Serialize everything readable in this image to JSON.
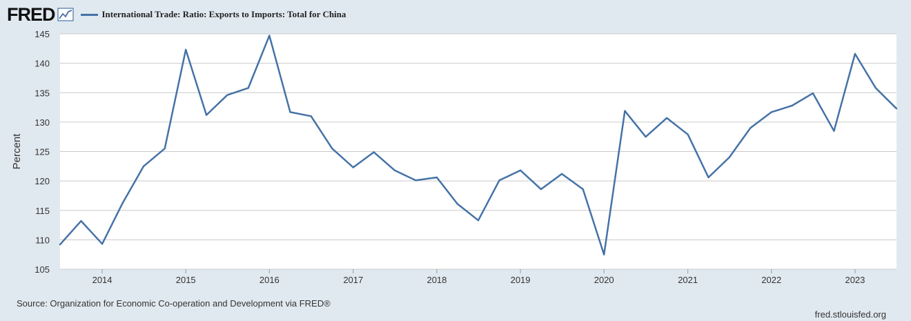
{
  "header": {
    "logo_text": "FRED",
    "series_label": "International Trade: Ratio: Exports to Imports: Total for China",
    "series_color": "#4572a7"
  },
  "footer": {
    "source": "Source: Organization for Economic Co-operation and Development via FRED®",
    "site": "fred.stlouisfed.org"
  },
  "chart_data": {
    "type": "line",
    "title": "",
    "xlabel": "",
    "ylabel": "Percent",
    "ylim": [
      105,
      145
    ],
    "yticks": [
      105,
      110,
      115,
      120,
      125,
      130,
      135,
      140,
      145
    ],
    "xlim": [
      "2013-07-01",
      "2023-07-01"
    ],
    "xticks": [
      "2014",
      "2015",
      "2016",
      "2017",
      "2018",
      "2019",
      "2020",
      "2021",
      "2022",
      "2023"
    ],
    "grid": true,
    "background": "#ffffff",
    "series": [
      {
        "name": "International Trade: Ratio: Exports to Imports: Total for China",
        "color": "#4572a7",
        "x": [
          "2013-07-01",
          "2013-10-01",
          "2014-01-01",
          "2014-04-01",
          "2014-07-01",
          "2014-10-01",
          "2015-01-01",
          "2015-04-01",
          "2015-07-01",
          "2015-10-01",
          "2016-01-01",
          "2016-04-01",
          "2016-07-01",
          "2016-10-01",
          "2017-01-01",
          "2017-04-01",
          "2017-07-01",
          "2017-10-01",
          "2018-01-01",
          "2018-04-01",
          "2018-07-01",
          "2018-10-01",
          "2019-01-01",
          "2019-04-01",
          "2019-07-01",
          "2019-10-01",
          "2020-01-01",
          "2020-04-01",
          "2020-07-01",
          "2020-10-01",
          "2021-01-01",
          "2021-04-01",
          "2021-07-01",
          "2021-10-01",
          "2022-01-01",
          "2022-04-01",
          "2022-07-01",
          "2022-10-01",
          "2023-01-01",
          "2023-04-01",
          "2023-07-01"
        ],
        "y": [
          109.2,
          113.2,
          109.3,
          116.3,
          122.5,
          125.5,
          142.3,
          131.2,
          134.6,
          135.8,
          144.7,
          131.7,
          131.0,
          125.5,
          122.3,
          124.9,
          121.8,
          120.1,
          120.6,
          116.1,
          113.3,
          120.1,
          121.8,
          118.6,
          121.2,
          118.6,
          107.5,
          131.9,
          127.5,
          130.7,
          127.9,
          120.6,
          124.0,
          129.0,
          131.7,
          132.8,
          134.9,
          128.5,
          141.6,
          135.8,
          132.3
        ]
      }
    ]
  }
}
